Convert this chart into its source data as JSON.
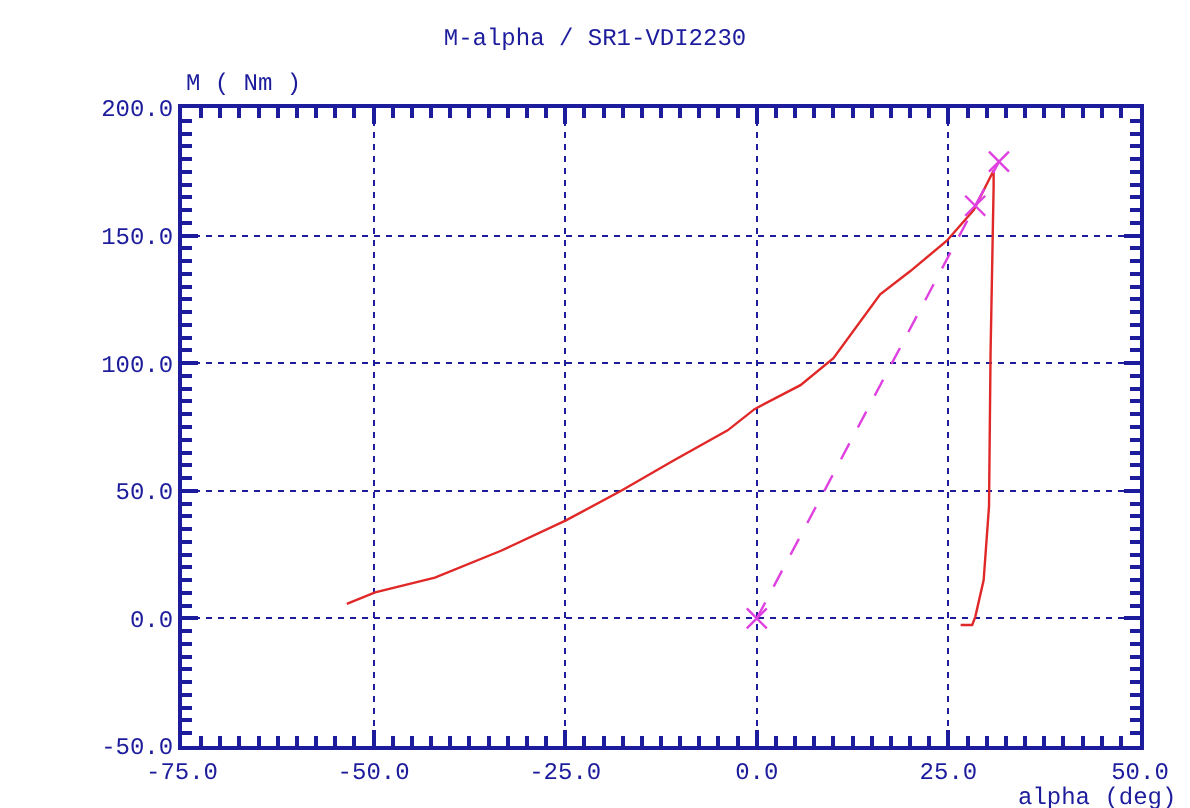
{
  "chart_data": {
    "type": "line",
    "title": "M-alpha / SR1-VDI2230",
    "xlabel": "alpha (deg)",
    "ylabel": "M ( Nm )",
    "series": [
      {
        "color": "#e02828",
        "marker": "none",
        "line_style": "solid",
        "x": [
          -53.5,
          -49.8,
          -42,
          -33.3,
          -24.9,
          -17.7,
          -10.8,
          -3.8,
          -0.3,
          5.7,
          10,
          16.1,
          20,
          24.8,
          28.3,
          30.9,
          30.9,
          30.5,
          30.3,
          29.6,
          28.5,
          28.1,
          26.6
        ],
        "values": [
          5.7,
          10.2,
          16,
          26.6,
          38.4,
          50,
          62,
          73.7,
          82,
          91.4,
          102,
          127,
          136,
          148,
          160,
          175.5,
          169,
          104,
          44,
          15,
          0.5,
          -2.6,
          -2.6
        ]
      },
      {
        "color": "#e040e0",
        "marker": "cross",
        "line_style": "dashed",
        "x": [
          0,
          28.5,
          31.6
        ],
        "values": [
          0,
          161.7,
          179
        ]
      }
    ],
    "xlim": [
      -75,
      50
    ],
    "xticks": [
      {
        "value": -75,
        "label": "-75.0"
      },
      {
        "value": -50,
        "label": "-50.0"
      },
      {
        "value": -25,
        "label": "-25.0"
      },
      {
        "value": 0,
        "label": "0.0"
      },
      {
        "value": 25,
        "label": "25.0"
      },
      {
        "value": 50,
        "label": "50.0"
      }
    ],
    "ylim": [
      -50,
      200
    ],
    "yticks": [
      {
        "value": -50,
        "label": "-50.0"
      },
      {
        "value": 0,
        "label": "0.0"
      },
      {
        "value": 50,
        "label": "50.0"
      },
      {
        "value": 100,
        "label": "100.0"
      },
      {
        "value": 150,
        "label": "150.0"
      },
      {
        "value": 200,
        "label": "200.0"
      }
    ],
    "grid": true
  }
}
